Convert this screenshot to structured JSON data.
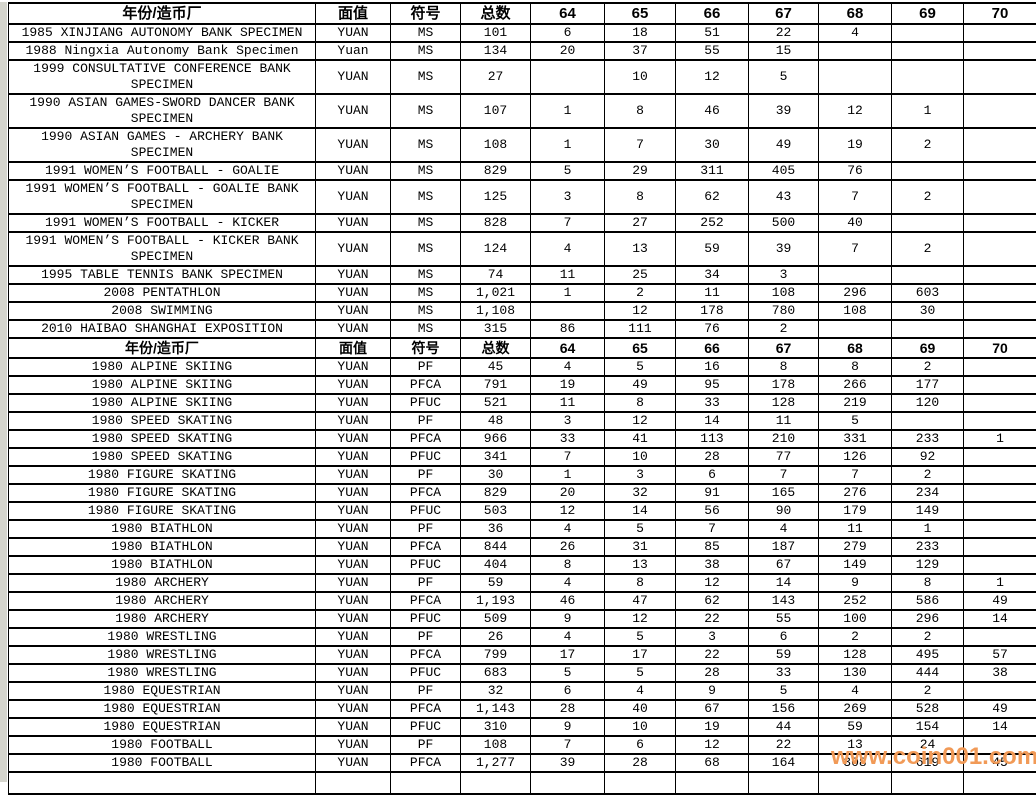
{
  "watermark": {
    "text": "www.coin001.com",
    "color": "#F19A57"
  },
  "table": {
    "columns": [
      "年份/造币厂",
      "面值",
      "符号",
      "总数",
      "64",
      "65",
      "66",
      "67",
      "68",
      "69",
      "70"
    ],
    "sections": [
      {
        "rows": [
          [
            "1985 XINJIANG AUTONOMY BANK SPECIMEN",
            "YUAN",
            "MS",
            "101",
            "6",
            "18",
            "51",
            "22",
            "4",
            "",
            ""
          ],
          [
            "1988 Ningxia Autonomy Bank Specimen",
            "Yuan",
            "MS",
            "134",
            "20",
            "37",
            "55",
            "15",
            "",
            "",
            ""
          ],
          [
            "1999 CONSULTATIVE CONFERENCE BANK SPECIMEN",
            "YUAN",
            "MS",
            "27",
            "",
            "10",
            "12",
            "5",
            "",
            "",
            ""
          ],
          [
            "1990 ASIAN GAMES-SWORD DANCER BANK SPECIMEN",
            "YUAN",
            "MS",
            "107",
            "1",
            "8",
            "46",
            "39",
            "12",
            "1",
            ""
          ],
          [
            "1990 ASIAN GAMES - ARCHERY BANK SPECIMEN",
            "YUAN",
            "MS",
            "108",
            "1",
            "7",
            "30",
            "49",
            "19",
            "2",
            ""
          ],
          [
            "1991 WOMEN’S FOOTBALL - GOALIE",
            "YUAN",
            "MS",
            "829",
            "5",
            "29",
            "311",
            "405",
            "76",
            "",
            ""
          ],
          [
            "1991 WOMEN’S FOOTBALL - GOALIE BANK SPECIMEN",
            "YUAN",
            "MS",
            "125",
            "3",
            "8",
            "62",
            "43",
            "7",
            "2",
            ""
          ],
          [
            "1991 WOMEN’S FOOTBALL - KICKER",
            "YUAN",
            "MS",
            "828",
            "7",
            "27",
            "252",
            "500",
            "40",
            "",
            ""
          ],
          [
            "1991 WOMEN’S FOOTBALL - KICKER BANK SPECIMEN",
            "YUAN",
            "MS",
            "124",
            "4",
            "13",
            "59",
            "39",
            "7",
            "2",
            ""
          ],
          [
            "1995 TABLE TENNIS BANK SPECIMEN",
            "YUAN",
            "MS",
            "74",
            "11",
            "25",
            "34",
            "3",
            "",
            "",
            ""
          ],
          [
            "2008 PENTATHLON",
            "YUAN",
            "MS",
            "1,021",
            "1",
            "2",
            "11",
            "108",
            "296",
            "603",
            ""
          ],
          [
            "2008 SWIMMING",
            "YUAN",
            "MS",
            "1,108",
            "",
            "12",
            "178",
            "780",
            "108",
            "30",
            ""
          ],
          [
            "2010 HAIBAO SHANGHAI EXPOSITION",
            "YUAN",
            "MS",
            "315",
            "86",
            "111",
            "76",
            "2",
            "",
            "",
            ""
          ]
        ]
      },
      {
        "rows": [
          [
            "1980 ALPINE SKIING",
            "YUAN",
            "PF",
            "45",
            "4",
            "5",
            "16",
            "8",
            "8",
            "2",
            ""
          ],
          [
            "1980 ALPINE SKIING",
            "YUAN",
            "PFCA",
            "791",
            "19",
            "49",
            "95",
            "178",
            "266",
            "177",
            ""
          ],
          [
            "1980 ALPINE SKIING",
            "YUAN",
            "PFUC",
            "521",
            "11",
            "8",
            "33",
            "128",
            "219",
            "120",
            ""
          ],
          [
            "1980 SPEED SKATING",
            "YUAN",
            "PF",
            "48",
            "3",
            "12",
            "14",
            "11",
            "5",
            "",
            ""
          ],
          [
            "1980 SPEED SKATING",
            "YUAN",
            "PFCA",
            "966",
            "33",
            "41",
            "113",
            "210",
            "331",
            "233",
            "1"
          ],
          [
            "1980 SPEED SKATING",
            "YUAN",
            "PFUC",
            "341",
            "7",
            "10",
            "28",
            "77",
            "126",
            "92",
            ""
          ],
          [
            "1980 FIGURE SKATING",
            "YUAN",
            "PF",
            "30",
            "1",
            "3",
            "6",
            "7",
            "7",
            "2",
            ""
          ],
          [
            "1980 FIGURE SKATING",
            "YUAN",
            "PFCA",
            "829",
            "20",
            "32",
            "91",
            "165",
            "276",
            "234",
            ""
          ],
          [
            "1980 FIGURE SKATING",
            "YUAN",
            "PFUC",
            "503",
            "12",
            "14",
            "56",
            "90",
            "179",
            "149",
            ""
          ],
          [
            "1980 BIATHLON",
            "YUAN",
            "PF",
            "36",
            "4",
            "5",
            "7",
            "4",
            "11",
            "1",
            ""
          ],
          [
            "1980 BIATHLON",
            "YUAN",
            "PFCA",
            "844",
            "26",
            "31",
            "85",
            "187",
            "279",
            "233",
            ""
          ],
          [
            "1980 BIATHLON",
            "YUAN",
            "PFUC",
            "404",
            "8",
            "13",
            "38",
            "67",
            "149",
            "129",
            ""
          ],
          [
            "1980 ARCHERY",
            "YUAN",
            "PF",
            "59",
            "4",
            "8",
            "12",
            "14",
            "9",
            "8",
            "1"
          ],
          [
            "1980 ARCHERY",
            "YUAN",
            "PFCA",
            "1,193",
            "46",
            "47",
            "62",
            "143",
            "252",
            "586",
            "49"
          ],
          [
            "1980 ARCHERY",
            "YUAN",
            "PFUC",
            "509",
            "9",
            "12",
            "22",
            "55",
            "100",
            "296",
            "14"
          ],
          [
            "1980 WRESTLING",
            "YUAN",
            "PF",
            "26",
            "4",
            "5",
            "3",
            "6",
            "2",
            "2",
            ""
          ],
          [
            "1980 WRESTLING",
            "YUAN",
            "PFCA",
            "799",
            "17",
            "17",
            "22",
            "59",
            "128",
            "495",
            "57"
          ],
          [
            "1980 WRESTLING",
            "YUAN",
            "PFUC",
            "683",
            "5",
            "5",
            "28",
            "33",
            "130",
            "444",
            "38"
          ],
          [
            "1980 EQUESTRIAN",
            "YUAN",
            "PF",
            "32",
            "6",
            "4",
            "9",
            "5",
            "4",
            "2",
            ""
          ],
          [
            "1980 EQUESTRIAN",
            "YUAN",
            "PFCA",
            "1,143",
            "28",
            "40",
            "67",
            "156",
            "269",
            "528",
            "49"
          ],
          [
            "1980 EQUESTRIAN",
            "YUAN",
            "PFUC",
            "310",
            "9",
            "10",
            "19",
            "44",
            "59",
            "154",
            "14"
          ],
          [
            "1980 FOOTBALL",
            "YUAN",
            "PF",
            "108",
            "7",
            "6",
            "12",
            "22",
            "13",
            "24",
            ""
          ],
          [
            "1980 FOOTBALL",
            "YUAN",
            "PFCA",
            "1,277",
            "39",
            "28",
            "68",
            "164",
            "308",
            "619",
            "45"
          ]
        ]
      }
    ]
  }
}
